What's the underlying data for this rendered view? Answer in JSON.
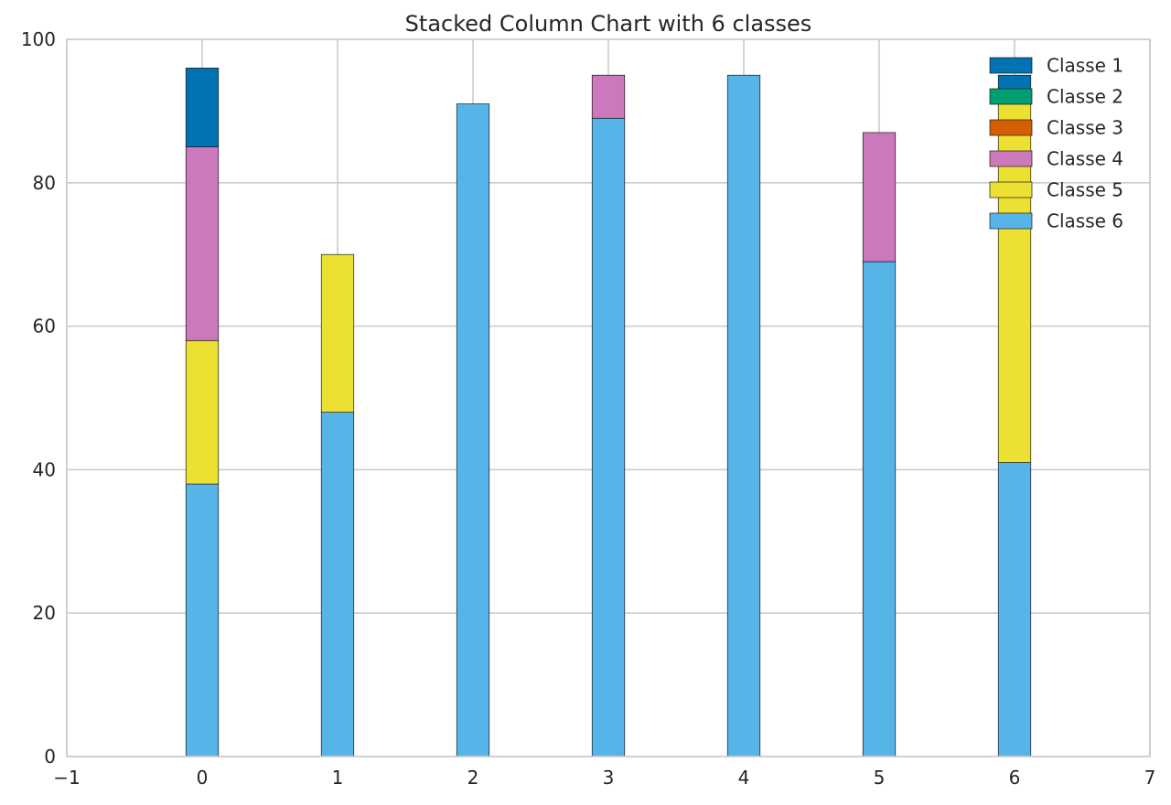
{
  "chart_data": {
    "type": "bar",
    "stacked": true,
    "title": "Stacked Column Chart with 6 classes",
    "xlabel": "",
    "ylabel": "",
    "categories": [
      0,
      1,
      2,
      3,
      4,
      5,
      6
    ],
    "xlim": [
      -1,
      7
    ],
    "ylim": [
      0,
      100
    ],
    "x_ticks": [
      "−1",
      "0",
      "1",
      "2",
      "3",
      "4",
      "5",
      "6",
      "7"
    ],
    "y_ticks": [
      "0",
      "20",
      "40",
      "60",
      "80",
      "100"
    ],
    "grid": true,
    "legend_position": "top-right",
    "series": [
      {
        "name": "Classe 1",
        "color": "#0173B2",
        "values": [
          11,
          0,
          0,
          0,
          0,
          0,
          4
        ]
      },
      {
        "name": "Classe 2",
        "color": "#029E73",
        "values": [
          0,
          0,
          0,
          0,
          0,
          0,
          0
        ]
      },
      {
        "name": "Classe 3",
        "color": "#D55E00",
        "values": [
          0,
          0,
          0,
          0,
          0,
          0,
          0
        ]
      },
      {
        "name": "Classe 4",
        "color": "#CC78BC",
        "values": [
          27,
          0,
          0,
          6,
          0,
          18,
          0
        ]
      },
      {
        "name": "Classe 5",
        "color": "#ECE133",
        "values": [
          20,
          22,
          0,
          0,
          0,
          0,
          50
        ]
      },
      {
        "name": "Classe 6",
        "color": "#56B4E9",
        "values": [
          38,
          48,
          91,
          89,
          95,
          69,
          41
        ]
      }
    ]
  }
}
